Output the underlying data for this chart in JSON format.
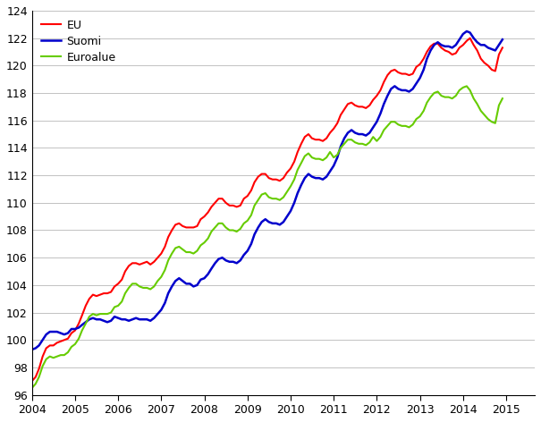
{
  "title": "",
  "ylabel": "",
  "xlabel": "",
  "ylim": [
    96,
    124
  ],
  "line_colors": {
    "EU": "#ff0000",
    "Suomi": "#0000cc",
    "Euroalue": "#66cc00"
  },
  "line_widths": {
    "EU": 1.5,
    "Suomi": 1.8,
    "Euroalue": 1.5
  },
  "legend_labels": [
    "EU",
    "Suomi",
    "Euroalue"
  ],
  "background_color": "#ffffff",
  "grid_color": "#aaaaaa",
  "EU": [
    97.0,
    97.3,
    97.9,
    98.8,
    99.4,
    99.6,
    99.6,
    99.8,
    99.9,
    100.0,
    100.1,
    100.5,
    100.7,
    101.2,
    101.8,
    102.5,
    103.0,
    103.3,
    103.2,
    103.3,
    103.4,
    103.4,
    103.5,
    103.9,
    104.1,
    104.4,
    105.0,
    105.4,
    105.6,
    105.6,
    105.5,
    105.6,
    105.7,
    105.5,
    105.7,
    106.0,
    106.3,
    106.8,
    107.5,
    108.0,
    108.4,
    108.5,
    108.3,
    108.2,
    108.2,
    108.2,
    108.3,
    108.8,
    109.0,
    109.3,
    109.7,
    110.0,
    110.3,
    110.3,
    110.0,
    109.8,
    109.8,
    109.7,
    109.8,
    110.3,
    110.5,
    110.9,
    111.5,
    111.9,
    112.1,
    112.1,
    111.8,
    111.7,
    111.7,
    111.6,
    111.8,
    112.2,
    112.5,
    113.0,
    113.7,
    114.3,
    114.8,
    115.0,
    114.7,
    114.6,
    114.6,
    114.5,
    114.7,
    115.1,
    115.4,
    115.8,
    116.4,
    116.8,
    117.2,
    117.3,
    117.1,
    117.0,
    117.0,
    116.9,
    117.1,
    117.5,
    117.8,
    118.2,
    118.8,
    119.3,
    119.6,
    119.7,
    119.5,
    119.4,
    119.4,
    119.3,
    119.4,
    119.9,
    120.1,
    120.5,
    121.0,
    121.4,
    121.6,
    121.6,
    121.3,
    121.1,
    121.0,
    120.8,
    120.9,
    121.3,
    121.5,
    121.8,
    122.0,
    121.5,
    121.1,
    120.5,
    120.2,
    120.0,
    119.7,
    119.6,
    120.8,
    121.3
  ],
  "Suomi": [
    99.3,
    99.4,
    99.6,
    100.0,
    100.4,
    100.6,
    100.6,
    100.6,
    100.5,
    100.4,
    100.5,
    100.8,
    100.8,
    100.9,
    101.1,
    101.3,
    101.5,
    101.6,
    101.5,
    101.5,
    101.4,
    101.3,
    101.4,
    101.7,
    101.6,
    101.5,
    101.5,
    101.4,
    101.5,
    101.6,
    101.5,
    101.5,
    101.5,
    101.4,
    101.6,
    101.9,
    102.2,
    102.7,
    103.4,
    103.9,
    104.3,
    104.5,
    104.3,
    104.1,
    104.1,
    103.9,
    104.0,
    104.4,
    104.5,
    104.8,
    105.2,
    105.6,
    105.9,
    106.0,
    105.8,
    105.7,
    105.7,
    105.6,
    105.8,
    106.2,
    106.5,
    107.0,
    107.7,
    108.2,
    108.6,
    108.8,
    108.6,
    108.5,
    108.5,
    108.4,
    108.6,
    109.0,
    109.4,
    110.0,
    110.7,
    111.3,
    111.8,
    112.1,
    111.9,
    111.8,
    111.8,
    111.7,
    111.9,
    112.3,
    112.7,
    113.3,
    114.1,
    114.7,
    115.1,
    115.3,
    115.1,
    115.0,
    115.0,
    114.9,
    115.1,
    115.5,
    115.9,
    116.5,
    117.2,
    117.8,
    118.3,
    118.5,
    118.3,
    118.2,
    118.2,
    118.1,
    118.3,
    118.7,
    119.1,
    119.7,
    120.5,
    121.1,
    121.5,
    121.7,
    121.5,
    121.4,
    121.4,
    121.3,
    121.5,
    121.9,
    122.3,
    122.5,
    122.4,
    122.0,
    121.7,
    121.5,
    121.5,
    121.3,
    121.2,
    121.1,
    121.5,
    121.9
  ],
  "Euroalue": [
    96.5,
    96.8,
    97.3,
    98.1,
    98.6,
    98.8,
    98.7,
    98.8,
    98.9,
    98.9,
    99.1,
    99.5,
    99.7,
    100.1,
    100.7,
    101.2,
    101.7,
    101.9,
    101.8,
    101.9,
    101.9,
    101.9,
    102.0,
    102.4,
    102.5,
    102.8,
    103.4,
    103.8,
    104.1,
    104.1,
    103.9,
    103.8,
    103.8,
    103.7,
    103.9,
    104.3,
    104.6,
    105.1,
    105.8,
    106.3,
    106.7,
    106.8,
    106.6,
    106.4,
    106.4,
    106.3,
    106.5,
    106.9,
    107.1,
    107.4,
    107.9,
    108.2,
    108.5,
    108.5,
    108.2,
    108.0,
    108.0,
    107.9,
    108.1,
    108.5,
    108.7,
    109.1,
    109.8,
    110.2,
    110.6,
    110.7,
    110.4,
    110.3,
    110.3,
    110.2,
    110.4,
    110.8,
    111.2,
    111.7,
    112.4,
    112.9,
    113.4,
    113.6,
    113.3,
    113.2,
    113.2,
    113.1,
    113.3,
    113.7,
    113.3,
    113.5,
    114.0,
    114.3,
    114.6,
    114.6,
    114.4,
    114.3,
    114.3,
    114.2,
    114.4,
    114.8,
    114.5,
    114.8,
    115.3,
    115.6,
    115.9,
    115.9,
    115.7,
    115.6,
    115.6,
    115.5,
    115.7,
    116.1,
    116.3,
    116.7,
    117.3,
    117.7,
    118.0,
    118.1,
    117.8,
    117.7,
    117.7,
    117.6,
    117.8,
    118.2,
    118.4,
    118.5,
    118.2,
    117.6,
    117.2,
    116.7,
    116.4,
    116.1,
    115.9,
    115.8,
    117.1,
    117.6
  ]
}
